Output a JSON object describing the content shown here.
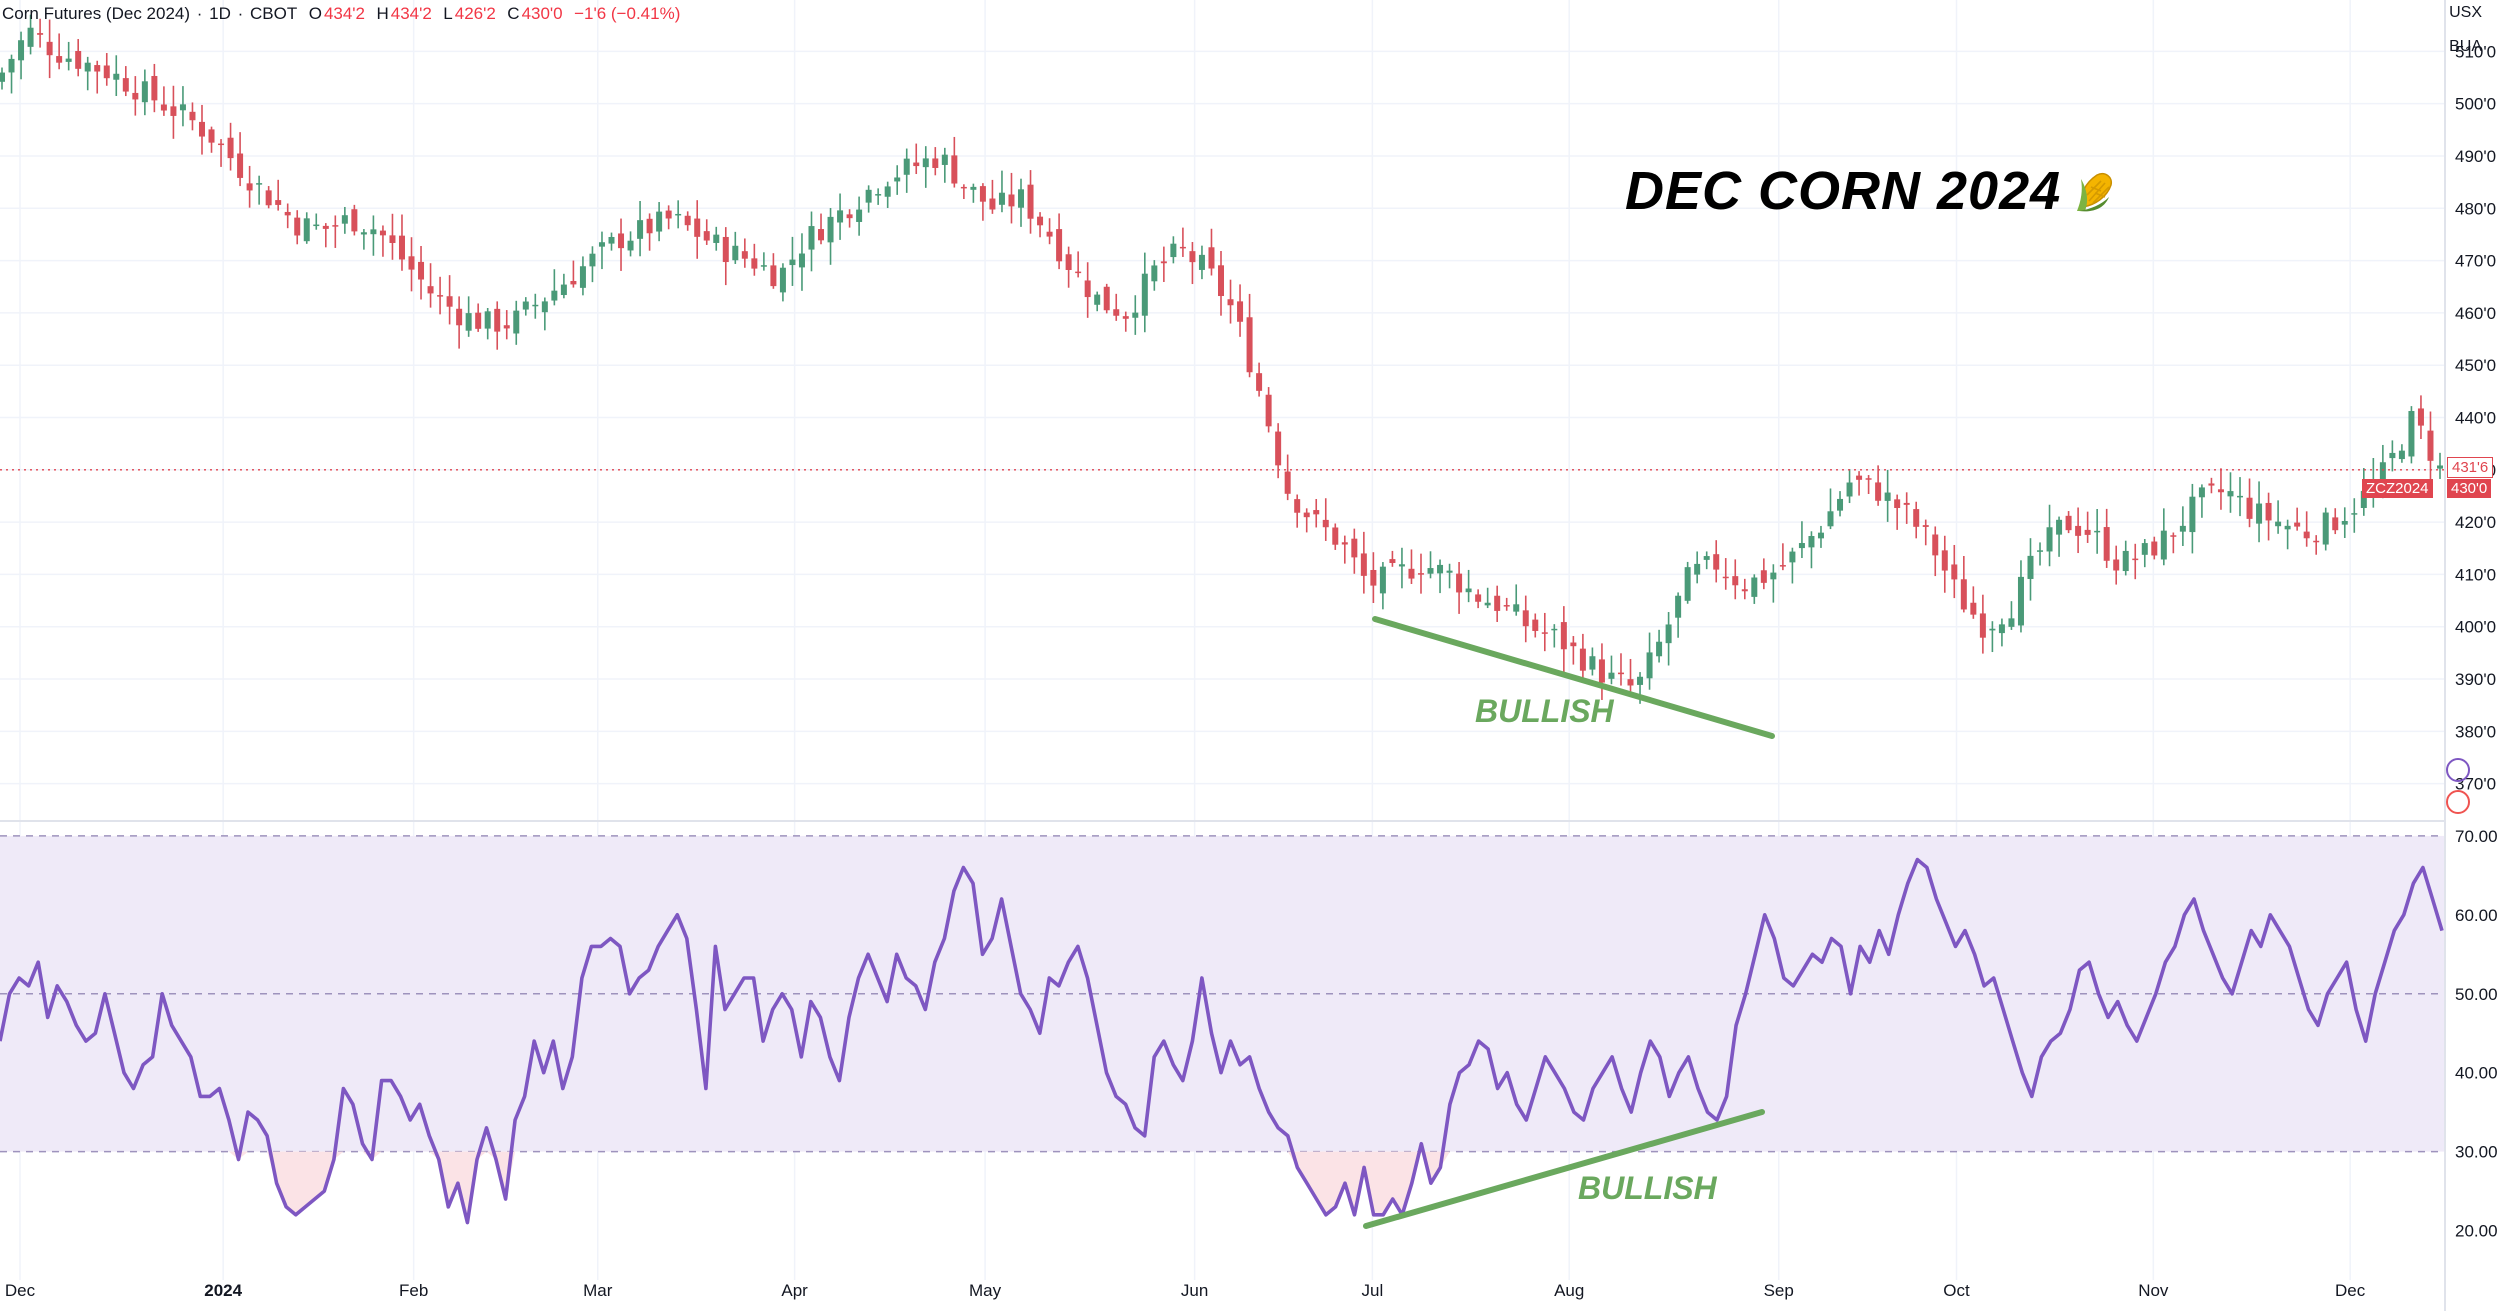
{
  "header": {
    "symbol": "Corn Futures (Dec 2024)",
    "interval": "1D",
    "exchange": "CBOT",
    "open_label": "O",
    "open": "434'2",
    "high_label": "H",
    "high": "434'2",
    "low_label": "L",
    "low": "426'2",
    "close_label": "C",
    "close": "430'0",
    "change": "−1'6 (−0.41%)"
  },
  "units": {
    "currency": "USX",
    "measure": "BUA"
  },
  "headline": "DEC CORN 2024",
  "annotations": {
    "price_divergence": "BULLISH",
    "rsi_divergence": "BULLISH"
  },
  "price_tags": {
    "last": "431'6",
    "symbol_tag": "ZCZ2024",
    "current": "430'0"
  },
  "colors": {
    "up": "#26a69a",
    "up_body": "#4a9a78",
    "down": "#ef5350",
    "down_body": "#d8505a",
    "rsi_line": "#7e57c2",
    "rsi_band": "#efeaf8",
    "trend": "#6aa85e",
    "tag_red": "#e0454f"
  },
  "icons": {
    "corn": "corn-icon"
  },
  "chart_data": [
    {
      "type": "candlestick",
      "title": "Corn Futures (Dec 2024) · 1D · CBOT",
      "ylim": [
        364,
        516
      ],
      "yticks": [
        "370'0",
        "380'0",
        "390'0",
        "400'0",
        "410'0",
        "420'0",
        "430'0",
        "440'0",
        "450'0",
        "460'0",
        "470'0",
        "480'0",
        "490'0",
        "500'0",
        "510'0"
      ],
      "ytick_values": [
        370,
        380,
        390,
        400,
        410,
        420,
        430,
        440,
        450,
        460,
        470,
        480,
        490,
        500,
        510
      ],
      "xticks": [
        "Dec",
        "2024",
        "Feb",
        "Mar",
        "Apr",
        "May",
        "Jun",
        "Jul",
        "Aug",
        "Sep",
        "Oct",
        "Nov",
        "Dec"
      ],
      "dates": [
        "2023-12-01",
        "2024-01-02",
        "2024-02-01",
        "2024-03-01",
        "2024-04-01",
        "2024-05-01",
        "2024-06-03",
        "2024-07-01",
        "2024-08-01",
        "2024-09-03",
        "2024-10-01",
        "2024-11-01",
        "2024-12-02",
        "2024-12-13"
      ],
      "close_path": [
        506,
        514,
        510,
        508,
        506,
        503,
        500,
        497,
        493,
        487,
        482,
        477,
        476,
        478,
        476,
        470,
        464,
        460,
        458,
        458,
        462,
        466,
        470,
        474,
        476,
        478,
        475,
        472,
        470,
        467,
        474,
        478,
        482,
        486,
        488,
        490,
        484,
        480,
        482,
        476,
        468,
        462,
        460,
        468,
        472,
        468,
        460,
        444,
        426,
        420,
        416,
        408,
        410,
        412,
        410,
        406,
        404,
        400,
        398,
        394,
        390,
        388,
        398,
        410,
        412,
        408,
        410,
        414,
        420,
        428,
        426,
        422,
        416,
        406,
        400,
        404,
        414,
        420,
        418,
        412,
        414,
        418,
        424,
        426,
        422,
        420,
        418,
        420,
        424,
        430,
        440,
        430
      ],
      "last_price": 430.0,
      "last_tag": 431.75
    },
    {
      "type": "line",
      "name": "RSI",
      "ylim": [
        15,
        71
      ],
      "yticks": [
        "20.00",
        "30.00",
        "40.00",
        "50.00",
        "60.00",
        "70.00"
      ],
      "ytick_values": [
        20,
        30,
        40,
        50,
        60,
        70
      ],
      "levels": [
        30,
        50,
        70
      ],
      "values": [
        44,
        50,
        52,
        51,
        54,
        47,
        51,
        49,
        46,
        44,
        45,
        50,
        45,
        40,
        38,
        41,
        42,
        50,
        46,
        44,
        42,
        37,
        37,
        38,
        34,
        29,
        35,
        34,
        32,
        26,
        23,
        22,
        23,
        24,
        25,
        29,
        38,
        36,
        31,
        29,
        39,
        39,
        37,
        34,
        36,
        32,
        29,
        23,
        26,
        21,
        29,
        33,
        29,
        24,
        34,
        37,
        44,
        40,
        44,
        38,
        42,
        52,
        56,
        56,
        57,
        56,
        50,
        52,
        53,
        56,
        58,
        60,
        57,
        48,
        38,
        56,
        48,
        50,
        52,
        52,
        44,
        48,
        50,
        48,
        42,
        49,
        47,
        42,
        39,
        47,
        52,
        55,
        52,
        49,
        55,
        52,
        51,
        48,
        54,
        57,
        63,
        66,
        64,
        55,
        57,
        62,
        56,
        50,
        48,
        45,
        52,
        51,
        54,
        56,
        52,
        46,
        40,
        37,
        36,
        33,
        32,
        42,
        44,
        41,
        39,
        44,
        52,
        45,
        40,
        44,
        41,
        42,
        38,
        35,
        33,
        32,
        28,
        26,
        24,
        22,
        23,
        26,
        22,
        28,
        22,
        22,
        24,
        22,
        26,
        31,
        26,
        28,
        36,
        40,
        41,
        44,
        43,
        38,
        40,
        36,
        34,
        38,
        42,
        40,
        38,
        35,
        34,
        38,
        40,
        42,
        38,
        35,
        40,
        44,
        42,
        37,
        40,
        42,
        38,
        35,
        34,
        37,
        46,
        50,
        55,
        60,
        57,
        52,
        51,
        53,
        55,
        54,
        57,
        56,
        50,
        56,
        54,
        58,
        55,
        60,
        64,
        67,
        66,
        62,
        59,
        56,
        58,
        55,
        51,
        52,
        48,
        44,
        40,
        37,
        42,
        44,
        45,
        48,
        53,
        54,
        50,
        47,
        49,
        46,
        44,
        47,
        50,
        54,
        56,
        60,
        62,
        58,
        55,
        52,
        50,
        54,
        58,
        56,
        60,
        58,
        56,
        52,
        48,
        46,
        50,
        52,
        54,
        48,
        44,
        50,
        54,
        58,
        60,
        64,
        66,
        62,
        58
      ]
    }
  ]
}
